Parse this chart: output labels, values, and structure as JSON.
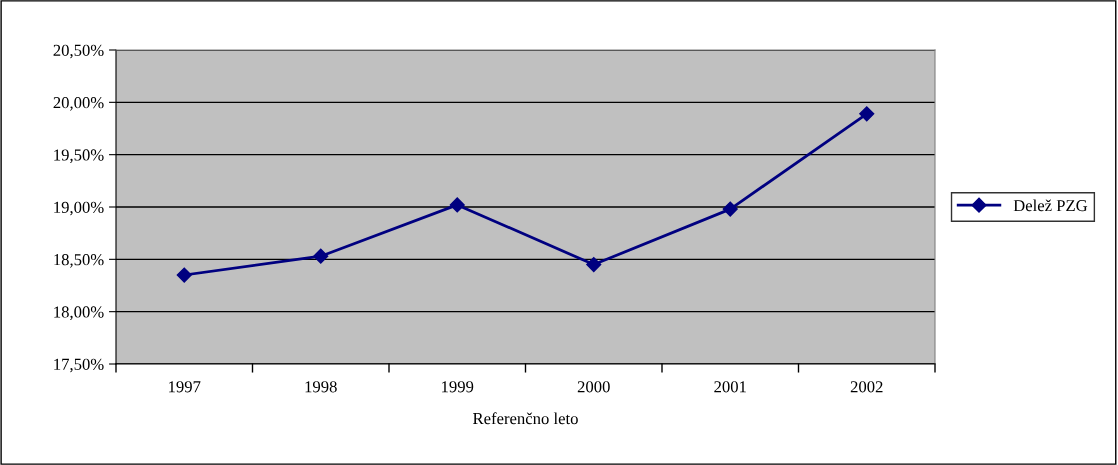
{
  "chart_data": {
    "type": "line",
    "xlabel": "Referenčno leto",
    "categories": [
      "1997",
      "1998",
      "1999",
      "2000",
      "2001",
      "2002"
    ],
    "series": [
      {
        "name": "Delež PZG",
        "color": "#000080",
        "values": [
          18.35,
          18.53,
          19.02,
          18.45,
          18.98,
          19.89
        ]
      }
    ],
    "ylim": [
      17.5,
      20.5
    ],
    "yticks": [
      {
        "value": 17.5,
        "label": "17,50%"
      },
      {
        "value": 18.0,
        "label": "18,00%"
      },
      {
        "value": 18.5,
        "label": "18,50%"
      },
      {
        "value": 19.0,
        "label": "19,00%"
      },
      {
        "value": 19.5,
        "label": "19,50%"
      },
      {
        "value": 20.0,
        "label": "20,00%"
      },
      {
        "value": 20.5,
        "label": "20,50%"
      }
    ],
    "grid": "y",
    "legend": "right",
    "marker": "diamond",
    "line_style": "solid"
  }
}
